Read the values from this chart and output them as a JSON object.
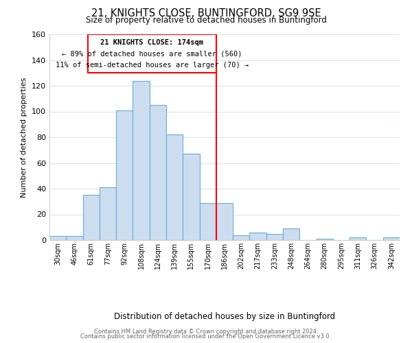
{
  "title_line1": "21, KNIGHTS CLOSE, BUNTINGFORD, SG9 9SE",
  "title_line2": "Size of property relative to detached houses in Buntingford",
  "xlabel": "Distribution of detached houses by size in Buntingford",
  "ylabel": "Number of detached properties",
  "bar_labels": [
    "30sqm",
    "46sqm",
    "61sqm",
    "77sqm",
    "92sqm",
    "108sqm",
    "124sqm",
    "139sqm",
    "155sqm",
    "170sqm",
    "186sqm",
    "202sqm",
    "217sqm",
    "233sqm",
    "248sqm",
    "264sqm",
    "280sqm",
    "295sqm",
    "311sqm",
    "326sqm",
    "342sqm"
  ],
  "bar_values": [
    3,
    3,
    35,
    41,
    101,
    124,
    105,
    82,
    67,
    29,
    29,
    4,
    6,
    5,
    9,
    0,
    1,
    0,
    2,
    0,
    2
  ],
  "bar_color": "#ccddf0",
  "bar_edge_color": "#6aaad4",
  "annotation_line1": "21 KNIGHTS CLOSE: 174sqm",
  "annotation_line2": "← 89% of detached houses are smaller (560)",
  "annotation_line3": "11% of semi-detached houses are larger (70) →",
  "red_line_x": 9.5,
  "ylim": [
    0,
    160
  ],
  "yticks": [
    0,
    20,
    40,
    60,
    80,
    100,
    120,
    140,
    160
  ],
  "footer_line1": "Contains HM Land Registry data © Crown copyright and database right 2024.",
  "footer_line2": "Contains public sector information licensed under the Open Government Licence v3.0.",
  "background_color": "#ffffff",
  "grid_color": "#d8e4f0"
}
